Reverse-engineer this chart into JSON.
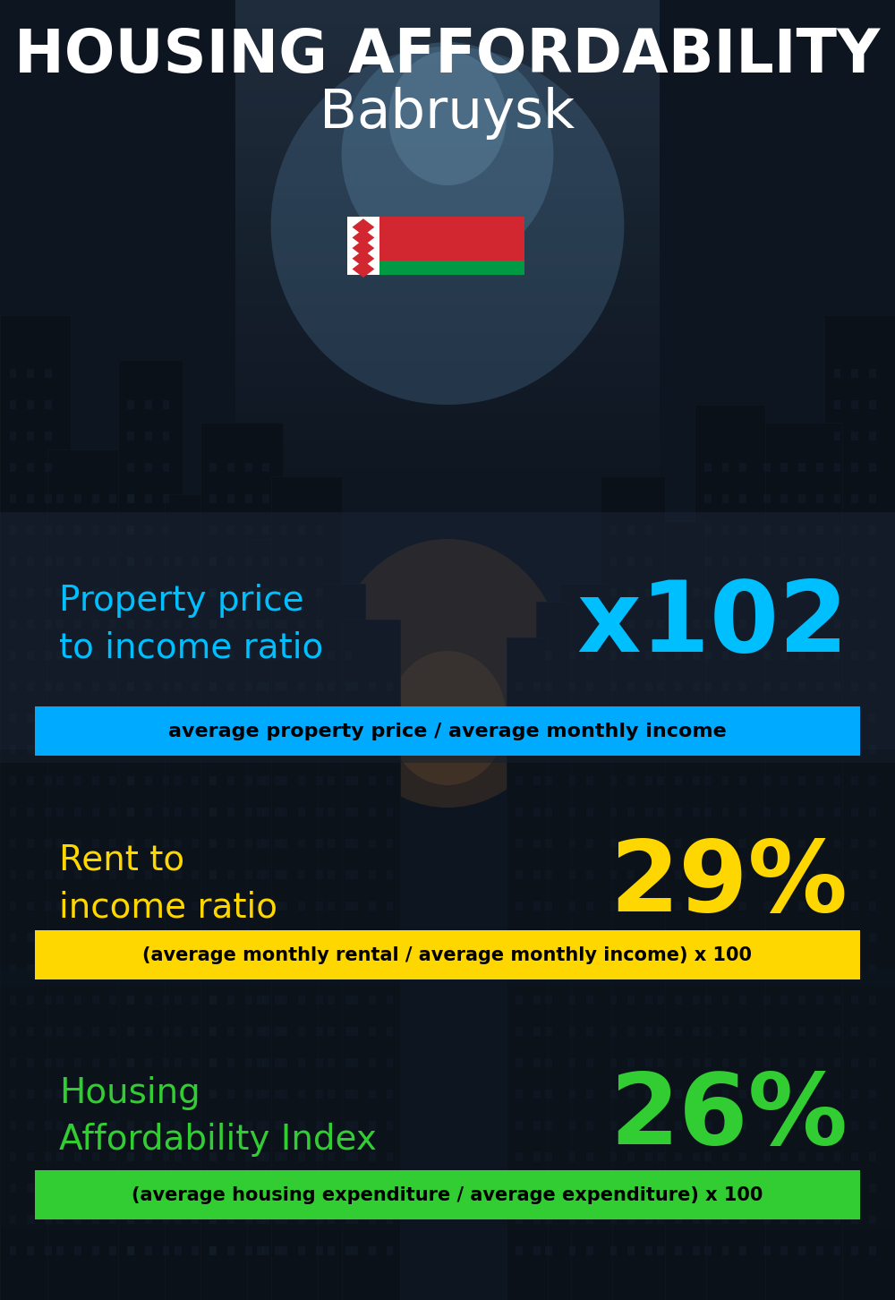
{
  "title_line1": "HOUSING AFFORDABILITY",
  "title_line2": "Babruysk",
  "bg_color": "#0a0e1a",
  "section1_label": "Property price\nto income ratio",
  "section1_value": "x102",
  "section1_label_color": "#00bfff",
  "section1_value_color": "#00bfff",
  "section1_banner": "average property price / average monthly income",
  "section1_banner_bg": "#00aaff",
  "section2_label": "Rent to\nincome ratio",
  "section2_value": "29%",
  "section2_label_color": "#ffd700",
  "section2_value_color": "#ffd700",
  "section2_banner": "(average monthly rental / average monthly income) x 100",
  "section2_banner_bg": "#ffd700",
  "section3_label": "Housing\nAffordability Index",
  "section3_value": "26%",
  "section3_label_color": "#32cd32",
  "section3_value_color": "#32cd32",
  "section3_banner": "(average housing expenditure / average expenditure) x 100",
  "section3_banner_bg": "#32cd32",
  "title_color": "#ffffff",
  "subtitle_color": "#ffffff"
}
